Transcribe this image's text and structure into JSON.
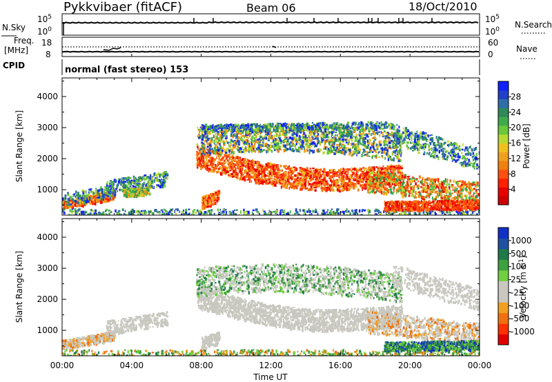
{
  "header": {
    "site": "Pykkvibaer (fitACF)",
    "beam": "Beam 06",
    "date": "18/Oct/2010"
  },
  "summary": {
    "nsky_label": "N.Sky",
    "nsearch_label": "N.Search",
    "left_top": "10^5",
    "left_bottom": "10^0",
    "right_top": "10^5",
    "right_bottom": "10^0",
    "freq_label_1": "Freq.",
    "freq_label_2": "[MHz]",
    "freq_top": "18",
    "freq_bottom": "8",
    "nave_label": "Nave",
    "nave_top": "60",
    "nave_bottom": "0",
    "cpid_label": "CPID",
    "cpid_text": "normal (fast stereo) 153"
  },
  "chart_data": [
    {
      "type": "heatmap",
      "panel": "power",
      "ylabel": "Slant Range [km]",
      "ylim": [
        180,
        4600
      ],
      "yticks": [
        1000,
        2000,
        3000,
        4000
      ],
      "xlabel": "Time UT",
      "xticks": [
        "00:00",
        "04:00",
        "08:00",
        "12:00",
        "16:00",
        "20:00",
        "00:00"
      ],
      "colorbar": {
        "label": "Power [dB]",
        "ticks": [
          "4",
          "8",
          "12",
          "16",
          "20",
          "24",
          "28"
        ],
        "colors": [
          "#1020ff",
          "#2040c8",
          "#2f6fa8",
          "#2e8a58",
          "#3faa4a",
          "#6ac83a",
          "#b8d832",
          "#f0c020",
          "#f0a020",
          "#f08010",
          "#ff5010",
          "#ff2000",
          "#e80000",
          "#cc0000"
        ]
      }
    },
    {
      "type": "heatmap",
      "panel": "velocity",
      "ylabel": "Slant Range [km]",
      "ylim": [
        180,
        4600
      ],
      "yticks": [
        1000,
        2000,
        3000,
        4000
      ],
      "xlabel": "Time UT",
      "xticks": [
        "00:00",
        "04:00",
        "08:00",
        "12:00",
        "16:00",
        "20:00",
        "00:00"
      ],
      "colorbar": {
        "label": "Velocity [m s^-1]",
        "ticks": [
          "1000",
          "500",
          "100",
          "25",
          "-25",
          "-100",
          "-500",
          "-1000"
        ],
        "colors": [
          "#1030c8",
          "#2050a0",
          "#1f7a4a",
          "#3fa040",
          "#70d040",
          "#c8c8c0",
          "#c8c8c0",
          "#f0a020",
          "#f07010",
          "#ff3000",
          "#e00000"
        ]
      }
    }
  ]
}
